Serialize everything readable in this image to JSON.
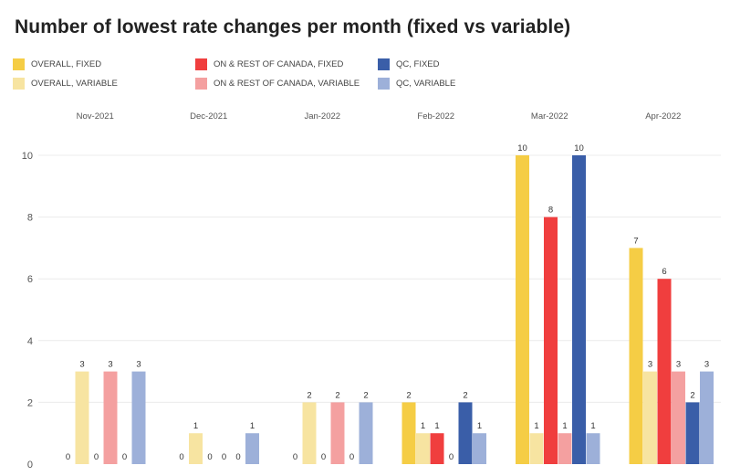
{
  "chart_data": {
    "type": "bar",
    "title": "Number of lowest rate changes per month (fixed vs variable)",
    "categories": [
      "Nov-2021",
      "Dec-2021",
      "Jan-2022",
      "Feb-2022",
      "Mar-2022",
      "Apr-2022"
    ],
    "series": [
      {
        "name": "OVERALL, FIXED",
        "color": "#f5cd45",
        "values": [
          0,
          0,
          0,
          2,
          10,
          7
        ]
      },
      {
        "name": "OVERALL, VARIABLE",
        "color": "#f7e4a1",
        "values": [
          3,
          1,
          2,
          1,
          1,
          3
        ]
      },
      {
        "name": "ON & REST OF CANADA, FIXED",
        "color": "#f03e3e",
        "values": [
          0,
          0,
          0,
          1,
          8,
          6
        ]
      },
      {
        "name": "ON & REST OF CANADA, VARIABLE",
        "color": "#f4a0a0",
        "values": [
          3,
          0,
          2,
          0,
          1,
          3
        ]
      },
      {
        "name": "QC, FIXED",
        "color": "#3a5ea8",
        "values": [
          0,
          0,
          0,
          2,
          10,
          2
        ]
      },
      {
        "name": "QC, VARIABLE",
        "color": "#9db0d9",
        "values": [
          3,
          1,
          2,
          1,
          1,
          3
        ]
      }
    ],
    "yticks": [
      0,
      2,
      4,
      6,
      8,
      10
    ],
    "ylim": [
      0,
      10
    ],
    "category_axis": "top",
    "legend_position": "top",
    "grid": true,
    "data_labels": true
  }
}
